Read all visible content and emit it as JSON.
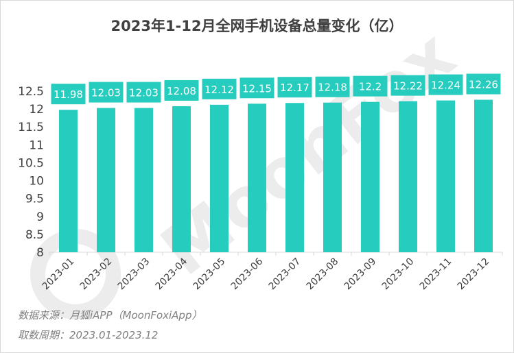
{
  "chart_data": {
    "type": "bar",
    "title": "2023年1-12月全网手机设备总量变化（亿）",
    "categories": [
      "2023-01",
      "2023-02",
      "2023-03",
      "2023-04",
      "2023-05",
      "2023-06",
      "2023-07",
      "2023-08",
      "2023-09",
      "2023-10",
      "2023-11",
      "2023-12"
    ],
    "values": [
      11.98,
      12.03,
      12.03,
      12.08,
      12.12,
      12.15,
      12.17,
      12.18,
      12.2,
      12.22,
      12.24,
      12.26
    ],
    "data_labels": [
      "11.98",
      "12.03",
      "12.03",
      "12.08",
      "12.12",
      "12.15",
      "12.17",
      "12.18",
      "12.2",
      "12.22",
      "12.24",
      "12.26"
    ],
    "ylim": [
      8,
      12.5
    ],
    "yticks": [
      "8",
      "8.5",
      "9",
      "9.5",
      "10",
      "10.5",
      "11",
      "11.5",
      "12",
      "12.5"
    ],
    "grid": false,
    "bar_color": "#26cdbe",
    "label_box_color": "#26cdbe",
    "label_text_color": "#ffffff"
  },
  "footer": {
    "source": "数据来源：月狐iAPP（MoonFoxiApp）",
    "period": "取数周期：2023.01-2023.12"
  },
  "watermark": {
    "text": "MoonFox",
    "color": "#ececec"
  }
}
